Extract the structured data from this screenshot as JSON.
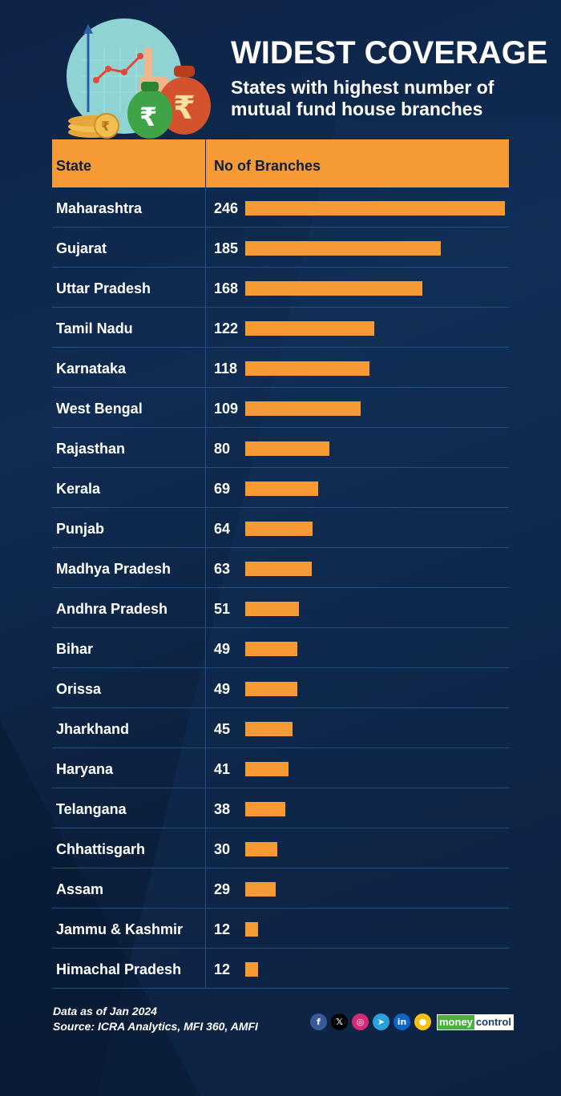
{
  "header": {
    "title": "WIDEST COVERAGE",
    "subtitle": "States with highest number of mutual fund house branches"
  },
  "table": {
    "col_state": "State",
    "col_branches": "No of Branches"
  },
  "chart_data": {
    "type": "bar",
    "orientation": "horizontal",
    "categories": [
      "Maharashtra",
      "Gujarat",
      "Uttar Pradesh",
      "Tamil Nadu",
      "Karnataka",
      "West Bengal",
      "Rajasthan",
      "Kerala",
      "Punjab",
      "Madhya Pradesh",
      "Andhra Pradesh",
      "Bihar",
      "Orissa",
      "Jharkhand",
      "Haryana",
      "Telangana",
      "Chhattisgarh",
      "Assam",
      "Jammu & Kashmir",
      "Himachal Pradesh"
    ],
    "values": [
      246,
      185,
      168,
      122,
      118,
      109,
      80,
      69,
      64,
      63,
      51,
      49,
      49,
      45,
      41,
      38,
      30,
      29,
      12,
      12
    ],
    "title": "WIDEST COVERAGE",
    "subtitle": "States with highest number of mutual fund house branches",
    "bar_color": "#f59a35",
    "grid": false
  },
  "footer": {
    "note": "Data as of Jan 2024",
    "source": "Source: ICRA Analytics, MFI 360, AMFI"
  },
  "social": [
    {
      "name": "facebook-icon",
      "glyph": "f",
      "color": "#3b5998"
    },
    {
      "name": "x-icon",
      "glyph": "𝕏",
      "color": "#000000"
    },
    {
      "name": "instagram-icon",
      "glyph": "◎",
      "color": "#d62976"
    },
    {
      "name": "telegram-icon",
      "glyph": "➤",
      "color": "#2aa1da"
    },
    {
      "name": "linkedin-icon",
      "glyph": "in",
      "color": "#0a66c2"
    },
    {
      "name": "koo-icon",
      "glyph": "●",
      "color": "#f4c20d"
    }
  ],
  "brand": {
    "part1": "money",
    "part2": "control"
  },
  "colors": {
    "accent": "#f59a35",
    "background": "#0d2346",
    "row_line": "#1f4f86"
  }
}
